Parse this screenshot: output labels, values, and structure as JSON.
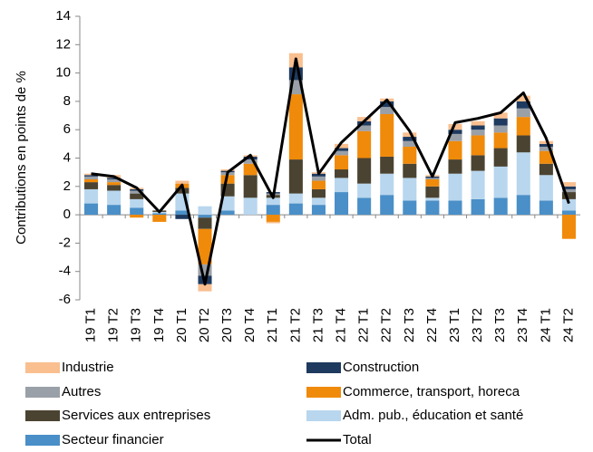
{
  "chart_data": {
    "type": "stacked_bar_line",
    "y_axis_label": "Contributions en points de %",
    "categories": [
      "19 T1",
      "19 T2",
      "19 T3",
      "19 T4",
      "20 T1",
      "20 T2",
      "20 T3",
      "20 T4",
      "21 T1",
      "21 T2",
      "21 T3",
      "21 T4",
      "22 T1",
      "22 T2",
      "22 T3",
      "22 T4",
      "23 T1",
      "23 T2",
      "23 T3",
      "23 T4",
      "24 T1",
      "24 T2"
    ],
    "ylim": [
      -6,
      14
    ],
    "yticks": [
      -6,
      -4,
      -2,
      0,
      2,
      4,
      6,
      8,
      10,
      12,
      14
    ],
    "series": [
      {
        "name": "Secteur financier",
        "color": "#4a8fc7",
        "values": [
          0.8,
          0.7,
          0.5,
          0.1,
          0.3,
          -0.2,
          0.3,
          0.0,
          0.7,
          0.8,
          0.7,
          1.6,
          1.2,
          1.4,
          1.0,
          1.0,
          1.0,
          1.1,
          1.2,
          1.4,
          1.0,
          0.3
        ]
      },
      {
        "name": "Adm. pub., éducation et santé",
        "color": "#b8d6ee",
        "values": [
          1.0,
          1.0,
          0.6,
          0.1,
          1.2,
          0.6,
          1.0,
          1.2,
          0.5,
          0.7,
          0.5,
          1.0,
          1.0,
          1.5,
          1.6,
          0.2,
          1.9,
          2.0,
          2.2,
          3.0,
          1.8,
          0.8
        ]
      },
      {
        "name": "Services aux entreprises",
        "color": "#4b4331",
        "values": [
          0.5,
          0.4,
          0.4,
          0.1,
          0.4,
          -0.8,
          0.9,
          1.6,
          0.2,
          2.4,
          0.6,
          0.6,
          1.8,
          1.2,
          1.0,
          0.8,
          1.0,
          1.1,
          1.3,
          1.2,
          0.8,
          0.5
        ]
      },
      {
        "name": "Commerce, transport, horeca",
        "color": "#f08a0a",
        "values": [
          0.2,
          0.2,
          -0.2,
          -0.5,
          0.3,
          -2.5,
          0.6,
          0.8,
          -0.5,
          4.6,
          0.6,
          1.0,
          1.9,
          3.0,
          1.2,
          0.5,
          1.3,
          1.4,
          1.1,
          1.3,
          0.9,
          -1.7
        ]
      },
      {
        "name": "Autres",
        "color": "#9aa0a8",
        "values": [
          0.2,
          0.2,
          0.2,
          0.0,
          0.0,
          -0.8,
          0.2,
          0.3,
          0.1,
          1.0,
          0.3,
          0.3,
          0.4,
          0.5,
          0.4,
          0.1,
          0.5,
          0.4,
          0.5,
          0.6,
          0.3,
          0.2
        ]
      },
      {
        "name": "Construction",
        "color": "#1f3a5f",
        "values": [
          0.1,
          0.1,
          0.1,
          0.0,
          -0.3,
          -0.6,
          0.1,
          0.2,
          0.1,
          0.9,
          0.2,
          0.2,
          0.3,
          0.4,
          0.3,
          0.1,
          0.3,
          0.3,
          0.5,
          0.5,
          0.2,
          0.2
        ]
      },
      {
        "name": "Industrie",
        "color": "#f9bf8f",
        "values": [
          0.1,
          0.2,
          0.1,
          0.0,
          0.2,
          -0.5,
          0.1,
          0.1,
          -0.1,
          1.0,
          0.1,
          0.3,
          0.3,
          0.2,
          0.3,
          0.1,
          0.4,
          0.3,
          0.4,
          0.4,
          0.2,
          0.3
        ]
      }
    ],
    "total": {
      "name": "Total",
      "color": "#000000",
      "values": [
        2.9,
        2.7,
        1.9,
        0.2,
        2.1,
        -4.9,
        3.0,
        4.2,
        1.2,
        11.0,
        2.9,
        5.1,
        6.6,
        8.1,
        5.9,
        2.7,
        6.5,
        6.8,
        7.2,
        8.6,
        5.4,
        0.8
      ]
    }
  }
}
